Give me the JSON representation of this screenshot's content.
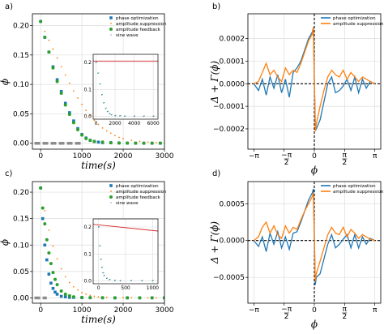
{
  "colors": {
    "blue": "#1f77b4",
    "orange": "#ff7f0e",
    "green": "#2ca02c",
    "purple": "#6a5acd",
    "red": "#d62728",
    "gray": "#8c8c8c"
  },
  "chart_data": [
    {
      "panel": "a)",
      "type": "scatter",
      "xlabel": "time(s)",
      "ylabel": "ϕ",
      "xlim": [
        -200,
        3000
      ],
      "ylim": [
        -0.01,
        0.22
      ],
      "xticks": [
        "0",
        "1000",
        "2000",
        "3000"
      ],
      "yticks": [
        "0.00",
        "0.05",
        "0.10",
        "0.15",
        "0.20"
      ],
      "grid": true,
      "legend": "top-right",
      "legend_entries": [
        "phase optimization",
        "amplitude suppression",
        "amplitude feedback",
        "sine wave"
      ],
      "series": [
        {
          "name": "phase optimization",
          "marker": "square",
          "x": [
            0,
            100,
            200,
            300,
            400,
            500,
            600,
            700,
            800,
            900,
            1000,
            1100,
            1200,
            1300,
            1400,
            1500,
            1700,
            1900,
            2100,
            2300,
            2500,
            2700,
            2900
          ],
          "y": [
            0.207,
            0.18,
            0.155,
            0.13,
            0.108,
            0.088,
            0.068,
            0.052,
            0.038,
            0.025,
            0.015,
            0.009,
            0.005,
            0.003,
            0.002,
            0.001,
            0.001,
            0.0005,
            0.0003,
            0.0002,
            0.0001,
            0.0001,
            0.0001
          ]
        },
        {
          "name": "amplitude suppression",
          "marker": "dot",
          "x": [
            0,
            100,
            200,
            300,
            400,
            500,
            600,
            700,
            800,
            900,
            1000,
            1100,
            1200,
            1300,
            1400,
            1500,
            1600,
            1700,
            1800,
            1900,
            2000,
            2200,
            2400,
            2600,
            2800,
            3000
          ],
          "y": [
            0.207,
            0.19,
            0.175,
            0.16,
            0.145,
            0.13,
            0.116,
            0.102,
            0.089,
            0.077,
            0.066,
            0.056,
            0.047,
            0.039,
            0.032,
            0.026,
            0.021,
            0.017,
            0.013,
            0.01,
            0.008,
            0.005,
            0.003,
            0.002,
            0.001,
            0.001
          ]
        },
        {
          "name": "amplitude feedback",
          "marker": "circle",
          "x": [
            0,
            100,
            200,
            300,
            400,
            500,
            600,
            700,
            800,
            900,
            1000,
            1100,
            1200,
            1300,
            1500,
            1700,
            1900,
            2100,
            2300,
            2500,
            2700,
            2900
          ],
          "y": [
            0.207,
            0.18,
            0.155,
            0.128,
            0.105,
            0.085,
            0.065,
            0.049,
            0.035,
            0.023,
            0.014,
            0.008,
            0.005,
            0.003,
            0.002,
            0.001,
            0.0005,
            0.0003,
            0.0002,
            0.0001,
            0.0001,
            0.0001
          ]
        },
        {
          "name": "sine wave",
          "marker": "segment",
          "x": [
            -150,
            1000
          ],
          "y": [
            0.0,
            0.0
          ]
        }
      ],
      "inset": {
        "xlim": [
          -300,
          6500
        ],
        "ylim": [
          -0.01,
          0.23
        ],
        "xticks": [
          "0",
          "2000",
          "4000",
          "6000"
        ],
        "yticks": [
          "0.0",
          "0.1",
          "0.2"
        ],
        "line_y": 0.205,
        "decay_x": [
          0,
          200,
          400,
          600,
          800,
          1000,
          1200,
          1400,
          1600,
          2000,
          2500,
          3000,
          4000,
          5000,
          6000
        ],
        "decay_y": [
          0.2,
          0.16,
          0.12,
          0.08,
          0.05,
          0.03,
          0.018,
          0.01,
          0.006,
          0.003,
          0.002,
          0.001,
          0.001,
          0.001,
          0.001
        ]
      }
    },
    {
      "panel": "b)",
      "type": "line",
      "xlabel": "ϕ",
      "ylabel": "Δ + Γ(ϕ)",
      "xlim": [
        -3.45,
        3.45
      ],
      "ylim": [
        -0.00029,
        0.00031
      ],
      "xticks": [
        "−π",
        "−π/2",
        "0",
        "π/2",
        "π"
      ],
      "yticks": [
        "−0.0002",
        "−0.0001",
        "0.0000",
        "0.0001",
        "0.0002"
      ],
      "grid": true,
      "legend": "top-right",
      "legend_entries": [
        "phase optimization",
        "amplitude suppression"
      ],
      "series": [
        {
          "name": "phase optimization",
          "x": [
            -3.14,
            -2.9,
            -2.7,
            -2.5,
            -2.3,
            -2.1,
            -1.9,
            -1.7,
            -1.5,
            -1.3,
            -1.1,
            -0.9,
            -0.7,
            -0.5,
            -0.3,
            -0.1,
            -0.05,
            0,
            0.05,
            0.1,
            0.3,
            0.5,
            0.7,
            0.9,
            1.1,
            1.3,
            1.5,
            1.7,
            1.9,
            2.1,
            2.3,
            2.5,
            2.7,
            2.9,
            3.14
          ],
          "y": [
            0.0,
            -3e-05,
            2e-05,
            -5e-05,
            3e-05,
            -2e-05,
            4e-05,
            -4e-05,
            2e-05,
            -6e-05,
            5e-05,
            7e-05,
            0.0001,
            0.00015,
            0.0002,
            0.00023,
            0.00025,
            2e-05,
            -0.00018,
            -0.0002,
            -0.00016,
            -8e-05,
            0.0,
            3e-05,
            -4e-05,
            -3e-05,
            -1e-05,
            2e-05,
            -3e-05,
            3e-05,
            -4e-05,
            2e-05,
            -2e-05,
            1e-05,
            0.0
          ]
        },
        {
          "name": "amplitude suppression",
          "x": [
            -3.14,
            -2.9,
            -2.7,
            -2.5,
            -2.3,
            -2.1,
            -1.9,
            -1.7,
            -1.5,
            -1.3,
            -1.1,
            -0.9,
            -0.7,
            -0.5,
            -0.3,
            -0.1,
            -0.05,
            0,
            0.05,
            0.1,
            0.3,
            0.5,
            0.7,
            0.9,
            1.1,
            1.3,
            1.5,
            1.7,
            1.9,
            2.1,
            2.3,
            2.5,
            2.7,
            2.9,
            3.14
          ],
          "y": [
            0.0,
            1e-05,
            5e-05,
            9e-05,
            4e-05,
            6e-05,
            3e-05,
            1e-05,
            7e-05,
            4e-05,
            6e-05,
            5e-05,
            9e-05,
            0.00014,
            0.00019,
            0.00022,
            0.00025,
            2e-05,
            -0.00021,
            -0.00018,
            -0.0001,
            -3e-05,
            3e-05,
            6e-05,
            4e-05,
            3e-05,
            6e-05,
            2e-05,
            5e-05,
            3e-05,
            1e-05,
            3e-05,
            2e-05,
            1e-05,
            0.0
          ]
        }
      ]
    },
    {
      "panel": "c)",
      "type": "scatter",
      "xlabel": "time(s)",
      "ylabel": "ϕ",
      "xlim": [
        -200,
        3000
      ],
      "ylim": [
        -0.01,
        0.22
      ],
      "xticks": [
        "0",
        "1000",
        "2000",
        "3000"
      ],
      "yticks": [
        "0.00",
        "0.05",
        "0.10",
        "0.15",
        "0.20"
      ],
      "grid": true,
      "legend": "top-right",
      "legend_entries": [
        "phase optimization",
        "amplitude suppression",
        "amplitude feedback",
        "sine wave"
      ],
      "series": [
        {
          "name": "phase optimization",
          "marker": "square",
          "x": [
            0,
            50,
            100,
            150,
            200,
            250,
            300,
            350,
            400,
            500,
            600,
            700,
            800,
            1000,
            1200,
            1500,
            1800,
            2100,
            2400,
            2700,
            3000
          ],
          "y": [
            0.208,
            0.15,
            0.1,
            0.072,
            0.045,
            0.028,
            0.018,
            0.011,
            0.007,
            0.003,
            0.002,
            0.001,
            0.001,
            0.0005,
            0.0003,
            0.0002,
            0.0001,
            0.0001,
            0.0001,
            0.0001,
            0.0001
          ]
        },
        {
          "name": "amplitude suppression",
          "marker": "dot",
          "x": [
            0,
            100,
            200,
            300,
            400,
            500,
            600,
            700,
            800,
            900,
            1000,
            1100,
            1200,
            1300,
            1400,
            1600,
            1800,
            2000,
            2200,
            2400,
            2600,
            2800,
            3000
          ],
          "y": [
            0.208,
            0.165,
            0.128,
            0.098,
            0.074,
            0.055,
            0.04,
            0.029,
            0.021,
            0.015,
            0.01,
            0.007,
            0.005,
            0.003,
            0.002,
            0.001,
            0.0008,
            0.0005,
            0.0003,
            0.0002,
            0.0001,
            0.0001,
            0.0001
          ]
        },
        {
          "name": "amplitude feedback",
          "marker": "circle",
          "x": [
            0,
            50,
            100,
            150,
            200,
            250,
            300,
            350,
            400,
            500,
            600,
            700,
            800,
            1000,
            1200,
            1500,
            1800,
            2100,
            2400,
            2700,
            3000
          ],
          "y": [
            0.208,
            0.17,
            0.14,
            0.11,
            0.085,
            0.065,
            0.048,
            0.035,
            0.025,
            0.013,
            0.007,
            0.004,
            0.002,
            0.001,
            0.0005,
            0.0003,
            0.0002,
            0.0001,
            0.0001,
            0.0001,
            0.0001
          ]
        },
        {
          "name": "sine wave",
          "marker": "segment",
          "x": [
            -150,
            150
          ],
          "y": [
            0.0,
            0.0
          ]
        }
      ],
      "inset": {
        "xlim": [
          -100,
          1100
        ],
        "ylim": [
          -0.01,
          0.23
        ],
        "xticks": [
          "0",
          "500",
          "1000"
        ],
        "yticks": [
          "0.0",
          "0.1",
          "0.2"
        ],
        "line_start": 0.21,
        "line_end": 0.185,
        "decay_x": [
          0,
          20,
          40,
          60,
          80,
          100,
          150,
          200,
          300,
          400,
          600,
          800,
          1000
        ],
        "decay_y": [
          0.2,
          0.13,
          0.08,
          0.05,
          0.03,
          0.02,
          0.01,
          0.005,
          0.002,
          0.001,
          0.001,
          0.001,
          0.001
        ]
      }
    },
    {
      "panel": "d)",
      "type": "line",
      "xlabel": "ϕ",
      "ylabel": "Δ + Γ(ϕ)",
      "xlim": [
        -3.45,
        3.45
      ],
      "ylim": [
        -0.00085,
        0.0008
      ],
      "xticks": [
        "−π",
        "−π/2",
        "0",
        "π/2",
        "π"
      ],
      "yticks": [
        "−0.0005",
        "0.0000",
        "0.0005"
      ],
      "grid": true,
      "legend": "top-right",
      "legend_entries": [
        "phase optimization",
        "amplitude suppression"
      ],
      "series": [
        {
          "name": "phase optimization",
          "x": [
            -3.14,
            -2.9,
            -2.7,
            -2.5,
            -2.3,
            -2.1,
            -1.9,
            -1.7,
            -1.5,
            -1.3,
            -1.1,
            -0.9,
            -0.7,
            -0.5,
            -0.3,
            -0.1,
            -0.05,
            0,
            0.05,
            0.1,
            0.3,
            0.5,
            0.7,
            0.9,
            1.1,
            1.3,
            1.5,
            1.7,
            1.9,
            2.1,
            2.3,
            2.5,
            2.7,
            2.9,
            3.14
          ],
          "y": [
            0.0,
            -8e-05,
            5e-05,
            -0.00015,
            0.0001,
            -5e-05,
            0.00012,
            -0.0001,
            5e-05,
            -0.00012,
            0.0001,
            0.00012,
            0.00025,
            0.0004,
            0.00055,
            0.00065,
            0.0007,
            5e-05,
            -0.0006,
            -0.0005,
            -0.00045,
            -0.00025,
            -5e-05,
            8e-05,
            -0.0001,
            -5e-05,
            2e-05,
            8e-05,
            -0.0001,
            8e-05,
            -0.0001,
            5e-05,
            -5e-05,
            3e-05,
            0.0
          ]
        },
        {
          "name": "amplitude suppression",
          "x": [
            -3.14,
            -2.9,
            -2.7,
            -2.5,
            -2.3,
            -2.1,
            -1.9,
            -1.7,
            -1.5,
            -1.3,
            -1.1,
            -0.9,
            -0.7,
            -0.5,
            -0.3,
            -0.1,
            -0.05,
            0,
            0.05,
            0.1,
            0.3,
            0.5,
            0.7,
            0.9,
            1.1,
            1.3,
            1.5,
            1.7,
            1.9,
            2.1,
            2.3,
            2.5,
            2.7,
            2.9,
            3.14
          ],
          "y": [
            0.0,
            5e-05,
            0.00018,
            0.00025,
            0.0001,
            0.0002,
            8e-05,
            3e-05,
            0.0002,
            0.0001,
            0.00018,
            0.00015,
            0.00028,
            0.0004,
            0.0005,
            0.0006,
            0.00065,
            5e-05,
            -0.00055,
            -0.00045,
            -0.00028,
            -0.0001,
            8e-05,
            0.00018,
            0.0001,
            8e-05,
            0.00018,
            5e-05,
            0.00015,
            0.0001,
            3e-05,
            8e-05,
            5e-05,
            2e-05,
            0.0
          ]
        }
      ]
    }
  ]
}
